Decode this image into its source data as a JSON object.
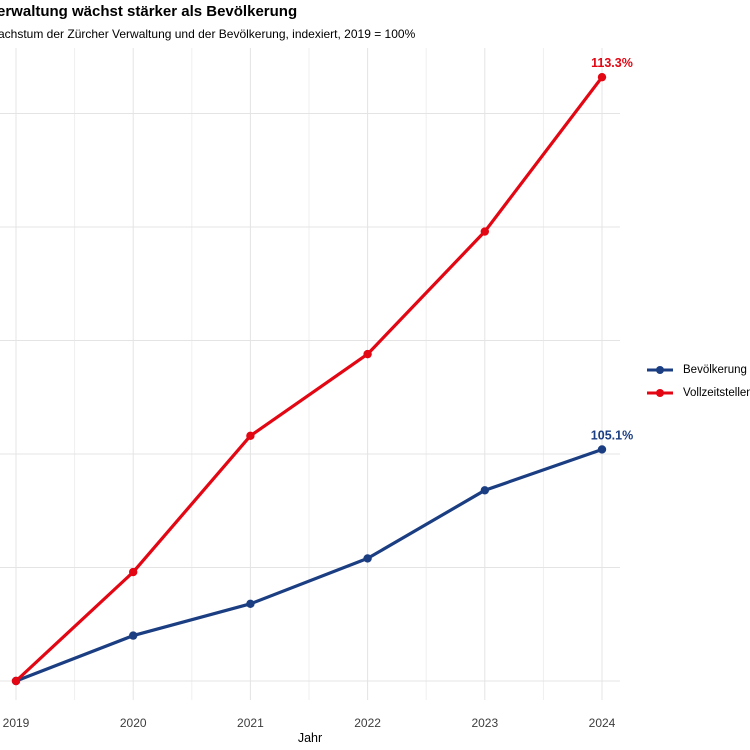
{
  "header": {
    "title": "erwaltung wächst stärker als Bevölkerung",
    "subtitle": "achstum der Zürcher Verwaltung und der Bevölkerung, indexiert, 2019 = 100%"
  },
  "chart_data": {
    "type": "line",
    "title": "erwaltung wächst stärker als Bevölkerung",
    "subtitle": "achstum der Zürcher Verwaltung und der Bevölkerung, indexiert, 2019 = 100%",
    "xlabel": "Jahr",
    "ylabel": "",
    "index_note": "2019 = 100%",
    "x": [
      2019,
      2020,
      2021,
      2022,
      2023,
      2024
    ],
    "x_tick_labels": [
      "2019",
      "2020",
      "2021",
      "2022",
      "2023",
      "2024"
    ],
    "ylim": [
      99.5,
      114.0
    ],
    "y_gridline_values": [
      100,
      102.5,
      105,
      107.5,
      110,
      112.5
    ],
    "grid": true,
    "legend_position": "right-center",
    "series": [
      {
        "name": "Bevölkerung",
        "color": "#1b3e82",
        "values": [
          100,
          101.0,
          101.7,
          102.7,
          104.2,
          105.1
        ],
        "end_label": "105.1%"
      },
      {
        "name": "Vollzeitstellen V",
        "color": "#e30613",
        "values": [
          100,
          102.4,
          105.4,
          107.2,
          109.9,
          113.3
        ],
        "end_label": "113.3%"
      }
    ]
  },
  "legend": {
    "items": [
      {
        "label": "Bevölkerung",
        "color": "#1b3e82"
      },
      {
        "label": "Vollzeitstellen V",
        "color": "#e30613"
      }
    ]
  },
  "colors": {
    "background": "#ffffff",
    "grid_major": "#e4e4e4",
    "grid_minor": "#efefef",
    "axis_text": "#3d3d3d"
  }
}
